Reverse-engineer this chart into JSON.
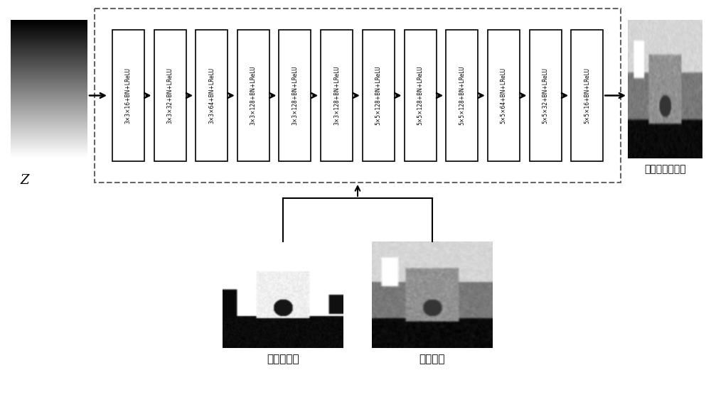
{
  "layers": [
    "3×3×16+BN+LReLU",
    "3×3×32+BN+LReLU",
    "3×3×64+BN+LReLU",
    "3×3×128+BN+LReLU",
    "3×3×128+BN+LReLU",
    "3×3×128+BN+LReLU",
    "5×5×128+BN+LReLU",
    "5×5×128+BN+LReLU",
    "5×5×128+BN+LReLU",
    "5×5×64+BN+LReLU",
    "5×5×32+BN+LReLU",
    "5×5×16+BN+LReLU"
  ],
  "input_label": "Z",
  "output_label": "修复后深度图像",
  "bottom_left_label": "空洞掩膜图",
  "bottom_right_label": "深度图像",
  "bg_color": "#ffffff",
  "box_color": "#000000",
  "dashed_box_color": "#666666",
  "arrow_color": "#000000",
  "text_color": "#000000",
  "fig_width": 10.0,
  "fig_height": 5.59,
  "dpi": 100
}
